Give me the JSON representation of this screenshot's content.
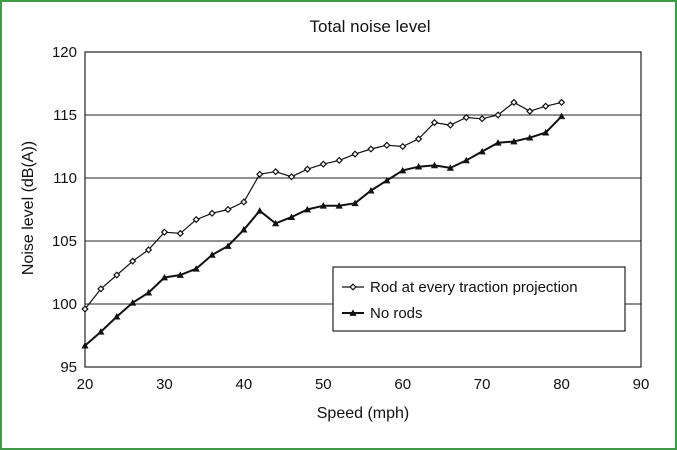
{
  "chart_data": {
    "type": "line",
    "title": "Total noise level",
    "xlabel": "Speed (mph)",
    "ylabel": "Noise level (dB(A))",
    "xlim": [
      20,
      90
    ],
    "ylim": [
      95,
      120
    ],
    "xticks": [
      20,
      30,
      40,
      50,
      60,
      70,
      80,
      90
    ],
    "yticks": [
      95,
      100,
      105,
      110,
      115,
      120
    ],
    "grid": "horizontal",
    "legend": "lower-right",
    "series": [
      {
        "name": "Rod at every traction projection",
        "marker": "diamond",
        "color": "#111111",
        "x": [
          20,
          22,
          24,
          26,
          28,
          30,
          32,
          34,
          36,
          38,
          40,
          42,
          44,
          46,
          48,
          50,
          52,
          54,
          56,
          58,
          60,
          62,
          64,
          66,
          68,
          70,
          72,
          74,
          76,
          78,
          80
        ],
        "y": [
          99.6,
          101.2,
          102.3,
          103.4,
          104.3,
          105.7,
          105.6,
          106.7,
          107.2,
          107.5,
          108.1,
          110.3,
          110.5,
          110.1,
          110.7,
          111.1,
          111.4,
          111.9,
          112.3,
          112.6,
          112.5,
          113.1,
          114.4,
          114.2,
          114.8,
          114.7,
          115.0,
          116.0,
          115.3,
          115.7,
          116.0
        ]
      },
      {
        "name": "No rods",
        "marker": "triangle",
        "color": "#111111",
        "x": [
          20,
          22,
          24,
          26,
          28,
          30,
          32,
          34,
          36,
          38,
          40,
          42,
          44,
          46,
          48,
          50,
          52,
          54,
          56,
          58,
          60,
          62,
          64,
          66,
          68,
          70,
          72,
          74,
          76,
          78,
          80
        ],
        "y": [
          96.7,
          97.8,
          99.0,
          100.1,
          100.9,
          102.1,
          102.3,
          102.8,
          103.9,
          104.6,
          105.9,
          107.4,
          106.4,
          106.9,
          107.5,
          107.8,
          107.8,
          108.0,
          109.0,
          109.8,
          110.6,
          110.9,
          111.0,
          110.8,
          111.4,
          112.1,
          112.8,
          112.9,
          113.2,
          113.6,
          114.9
        ]
      }
    ]
  }
}
